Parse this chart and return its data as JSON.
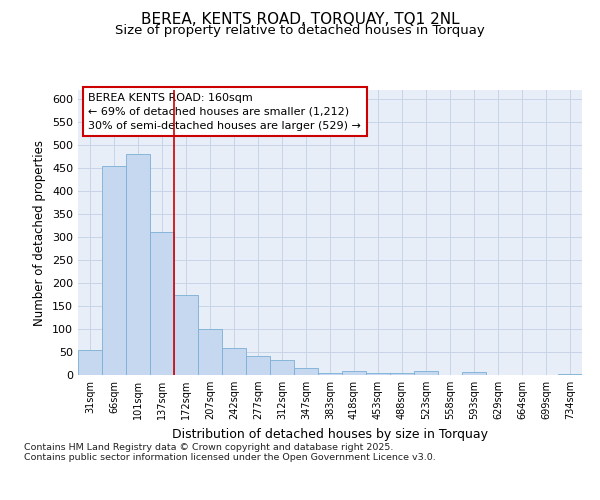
{
  "title": "BEREA, KENTS ROAD, TORQUAY, TQ1 2NL",
  "subtitle": "Size of property relative to detached houses in Torquay",
  "xlabel": "Distribution of detached houses by size in Torquay",
  "ylabel": "Number of detached properties",
  "categories": [
    "31sqm",
    "66sqm",
    "101sqm",
    "137sqm",
    "172sqm",
    "207sqm",
    "242sqm",
    "277sqm",
    "312sqm",
    "347sqm",
    "383sqm",
    "418sqm",
    "453sqm",
    "488sqm",
    "523sqm",
    "558sqm",
    "593sqm",
    "629sqm",
    "664sqm",
    "699sqm",
    "734sqm"
  ],
  "values": [
    55,
    455,
    480,
    312,
    175,
    100,
    59,
    42,
    32,
    15,
    5,
    9,
    5,
    5,
    9,
    0,
    7,
    0,
    0,
    0,
    2
  ],
  "bar_color": "#c5d8f0",
  "bar_edge_color": "#7bafd4",
  "grid_color": "#c8d4e8",
  "background_color": "#e8eef8",
  "vline_x_index": 4,
  "vline_color": "#cc0000",
  "annotation_text": "BEREA KENTS ROAD: 160sqm\n← 69% of detached houses are smaller (1,212)\n30% of semi-detached houses are larger (529) →",
  "annotation_box_color": "white",
  "annotation_box_edge_color": "#cc0000",
  "footer": "Contains HM Land Registry data © Crown copyright and database right 2025.\nContains public sector information licensed under the Open Government Licence v3.0.",
  "ylim": [
    0,
    620
  ],
  "yticks": [
    0,
    50,
    100,
    150,
    200,
    250,
    300,
    350,
    400,
    450,
    500,
    550,
    600
  ]
}
